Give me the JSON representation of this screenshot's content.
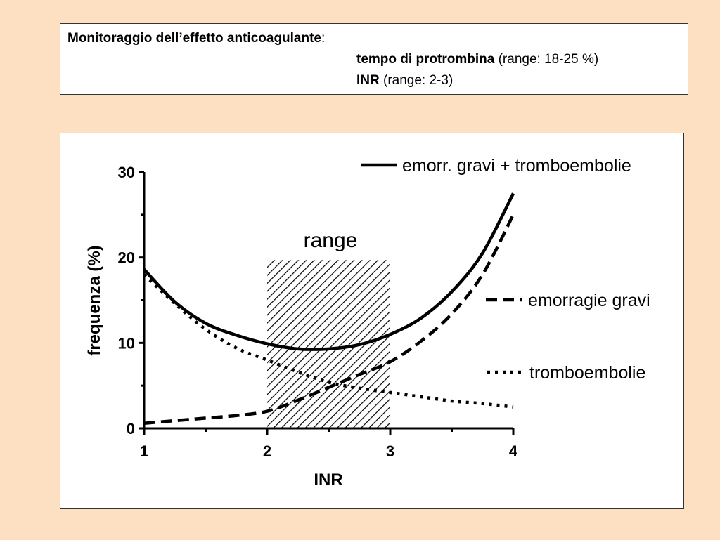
{
  "header": {
    "title_bold": "Monitoraggio dell’effetto anticoagulante",
    "title_colon": ":",
    "pt_label": "tempo di protrombina",
    "pt_range": " (range: 18-25 %)",
    "inr_label": "INR",
    "inr_range": " (range: 2-3)"
  },
  "chart_data": {
    "type": "line",
    "xlabel": "INR",
    "ylabel": "frequenza (%)",
    "xlim": [
      1,
      4
    ],
    "ylim": [
      0,
      30
    ],
    "x_ticks": [
      1,
      2,
      3,
      4
    ],
    "y_ticks": [
      0,
      10,
      20,
      30
    ],
    "grid": false,
    "legend_position": "right",
    "range_band": {
      "label": "range",
      "x_from": 2,
      "x_to": 3,
      "y_to": 19.7
    },
    "series": [
      {
        "name": "emorr. gravi + tromboembolie",
        "style": "solid",
        "x": [
          1.0,
          1.25,
          1.5,
          1.75,
          2.0,
          2.25,
          2.5,
          2.75,
          3.0,
          3.25,
          3.5,
          3.75,
          4.0
        ],
        "y": [
          18.6,
          14.8,
          12.3,
          10.9,
          9.9,
          9.3,
          9.3,
          9.8,
          11.0,
          12.9,
          16.0,
          20.5,
          27.5
        ]
      },
      {
        "name": "emorragie gravi",
        "style": "dashed",
        "x": [
          1.0,
          1.25,
          1.5,
          1.75,
          2.0,
          2.25,
          2.5,
          2.75,
          3.0,
          3.25,
          3.5,
          3.75,
          4.0
        ],
        "y": [
          0.6,
          0.9,
          1.2,
          1.5,
          2.0,
          3.3,
          4.8,
          6.3,
          7.8,
          10.2,
          13.4,
          18.0,
          25.0
        ]
      },
      {
        "name": "tromboembolie",
        "style": "dotted",
        "x": [
          1.0,
          1.25,
          1.5,
          1.75,
          2.0,
          2.25,
          2.5,
          2.75,
          3.0,
          3.25,
          3.5,
          3.75,
          4.0
        ],
        "y": [
          18.0,
          14.6,
          11.6,
          9.4,
          8.0,
          6.6,
          5.4,
          4.7,
          4.2,
          3.7,
          3.2,
          2.9,
          2.5
        ]
      }
    ]
  }
}
